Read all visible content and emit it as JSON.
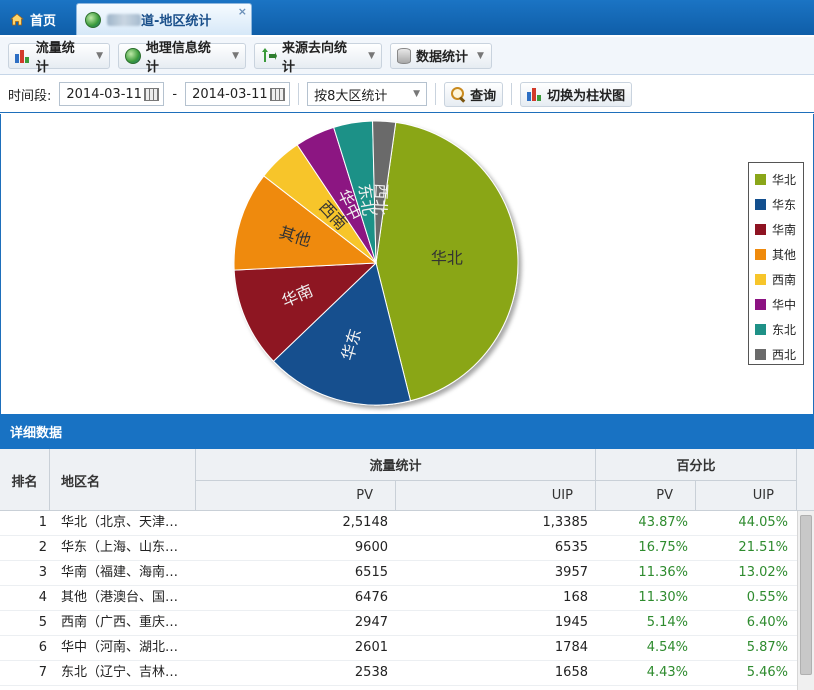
{
  "tabs": {
    "home_label": "首页",
    "active_label": "频道-地区统计",
    "active_visible_suffix": "道-地区统计",
    "close_glyph": "×"
  },
  "toolbar": {
    "traffic_label": "流量统计",
    "geo_label": "地理信息统计",
    "source_label": "来源去向统计",
    "data_label": "数据统计"
  },
  "filters": {
    "period_label": "时间段:",
    "start_date": "2014-03-11",
    "separator": "-",
    "end_date": "2014-03-11",
    "region_mode": "按8大区统计",
    "query_label": "查询",
    "switch_label": "切换为柱状图"
  },
  "chart_data": {
    "type": "pie",
    "title": "",
    "slices": [
      {
        "name": "华北",
        "value": 43.87,
        "color": "#8aa619"
      },
      {
        "name": "华东",
        "value": 16.75,
        "color": "#134f8e"
      },
      {
        "name": "华南",
        "value": 11.36,
        "color": "#8e1322"
      },
      {
        "name": "其他",
        "value": 11.3,
        "color": "#ef8a0c"
      },
      {
        "name": "西南",
        "value": 5.14,
        "color": "#f7c52a"
      },
      {
        "name": "华中",
        "value": 4.54,
        "color": "#8c1382"
      },
      {
        "name": "东北",
        "value": 4.43,
        "color": "#1f9187"
      },
      {
        "name": "西北",
        "value": 2.61,
        "color": "#6a6a6a"
      }
    ],
    "legend_position": "right"
  },
  "detail": {
    "title": "详细数据",
    "headers": {
      "rank": "排名",
      "region": "地区名",
      "traffic": "流量统计",
      "percent": "百分比",
      "pv": "PV",
      "uip": "UIP",
      "pct_pv": "PV",
      "pct_uip": "UIP"
    },
    "rows": [
      {
        "rank": "1",
        "name": "华北（北京、天津…",
        "pv": "2,5148",
        "uip": "1,3385",
        "pct_pv": "43.87%",
        "pct_uip": "44.05%"
      },
      {
        "rank": "2",
        "name": "华东（上海、山东…",
        "pv": "9600",
        "uip": "6535",
        "pct_pv": "16.75%",
        "pct_uip": "21.51%"
      },
      {
        "rank": "3",
        "name": "华南（福建、海南…",
        "pv": "6515",
        "uip": "3957",
        "pct_pv": "11.36%",
        "pct_uip": "13.02%"
      },
      {
        "rank": "4",
        "name": "其他（港澳台、国…",
        "pv": "6476",
        "uip": "168",
        "pct_pv": "11.30%",
        "pct_uip": "0.55%"
      },
      {
        "rank": "5",
        "name": "西南（广西、重庆…",
        "pv": "2947",
        "uip": "1945",
        "pct_pv": "5.14%",
        "pct_uip": "6.40%"
      },
      {
        "rank": "6",
        "name": "华中（河南、湖北…",
        "pv": "2601",
        "uip": "1784",
        "pct_pv": "4.54%",
        "pct_uip": "5.87%"
      },
      {
        "rank": "7",
        "name": "东北（辽宁、吉林…",
        "pv": "2538",
        "uip": "1658",
        "pct_pv": "4.43%",
        "pct_uip": "5.46%"
      }
    ]
  }
}
